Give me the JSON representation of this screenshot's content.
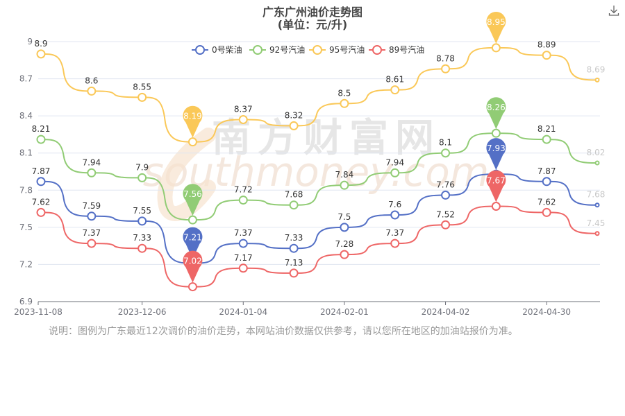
{
  "page": {
    "title": "广东广州油价走势图",
    "subtitle": "(单位：元/升)",
    "note": "说明：图例为广东最近12次调价的油价走势，本网站油价数据仅供参考，请以您所在地区的加油站报价为准。",
    "watermark_cn": "南方财富网",
    "watermark_en": "southmoney.com"
  },
  "chart_data": {
    "type": "line",
    "title": "广东广州油价走势图",
    "subtitle": "(单位：元/升)",
    "xlabel": "",
    "ylabel": "",
    "ylim": [
      6.9,
      9.0
    ],
    "yticks": [
      "6.9",
      "7.2",
      "7.5",
      "7.8",
      "8.1",
      "8.4",
      "8.7",
      "9"
    ],
    "xticks": [
      "2023-11-08",
      "2023-12-06",
      "2024-01-04",
      "2024-02-01",
      "2024-04-02",
      "2024-04-30"
    ],
    "legend_position": "top-center",
    "grid": true,
    "series": [
      {
        "name": "0号柴油",
        "color": "#5470c6",
        "values": [
          7.87,
          7.59,
          7.55,
          7.21,
          7.37,
          7.33,
          7.5,
          7.6,
          7.76,
          7.93,
          7.87,
          7.68
        ],
        "max_index": 9,
        "min_index": 3
      },
      {
        "name": "92号汽油",
        "color": "#91cc75",
        "values": [
          8.21,
          7.94,
          7.9,
          7.56,
          7.72,
          7.68,
          7.84,
          7.94,
          8.1,
          8.26,
          8.21,
          8.02
        ],
        "max_index": 9,
        "min_index": 3
      },
      {
        "name": "95号汽油",
        "color": "#fac858",
        "values": [
          8.9,
          8.6,
          8.55,
          8.19,
          8.37,
          8.32,
          8.5,
          8.61,
          8.78,
          8.95,
          8.89,
          8.69
        ],
        "max_index": 9,
        "min_index": 3
      },
      {
        "name": "89号汽油",
        "color": "#ee6666",
        "values": [
          7.62,
          7.37,
          7.33,
          7.02,
          7.17,
          7.13,
          7.28,
          7.37,
          7.52,
          7.67,
          7.62,
          7.45
        ],
        "max_index": 9,
        "min_index": 3
      }
    ]
  }
}
